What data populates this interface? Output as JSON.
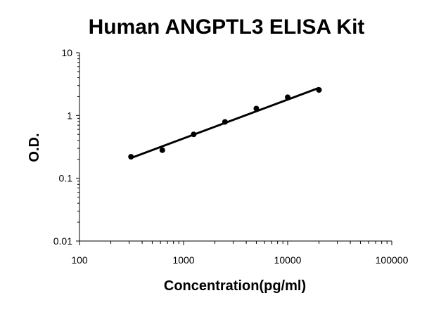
{
  "chart_data": {
    "type": "scatter",
    "title": "Human ANGPTL3 ELISA Kit",
    "xlabel": "Concentration(pg/ml)",
    "ylabel": "O.D.",
    "x_scale": "log",
    "y_scale": "log",
    "xlim": [
      100,
      100000
    ],
    "ylim": [
      0.01,
      10
    ],
    "x_ticks": [
      "100",
      "1000",
      "10000",
      "100000"
    ],
    "y_ticks": [
      "0.01",
      "0.1",
      "1",
      "10"
    ],
    "grid": false,
    "legend": "none",
    "series": [
      {
        "points": [
          {
            "x": 312.5,
            "y": 0.22
          },
          {
            "x": 625,
            "y": 0.28
          },
          {
            "x": 1250,
            "y": 0.5
          },
          {
            "x": 2500,
            "y": 0.79
          },
          {
            "x": 5000,
            "y": 1.29
          },
          {
            "x": 10000,
            "y": 1.95
          },
          {
            "x": 20000,
            "y": 2.55
          }
        ],
        "color": "#000000"
      }
    ],
    "fit_line": {
      "x": [
        312.5,
        20000
      ],
      "y": [
        0.21,
        2.75
      ],
      "color": "#000000"
    }
  }
}
